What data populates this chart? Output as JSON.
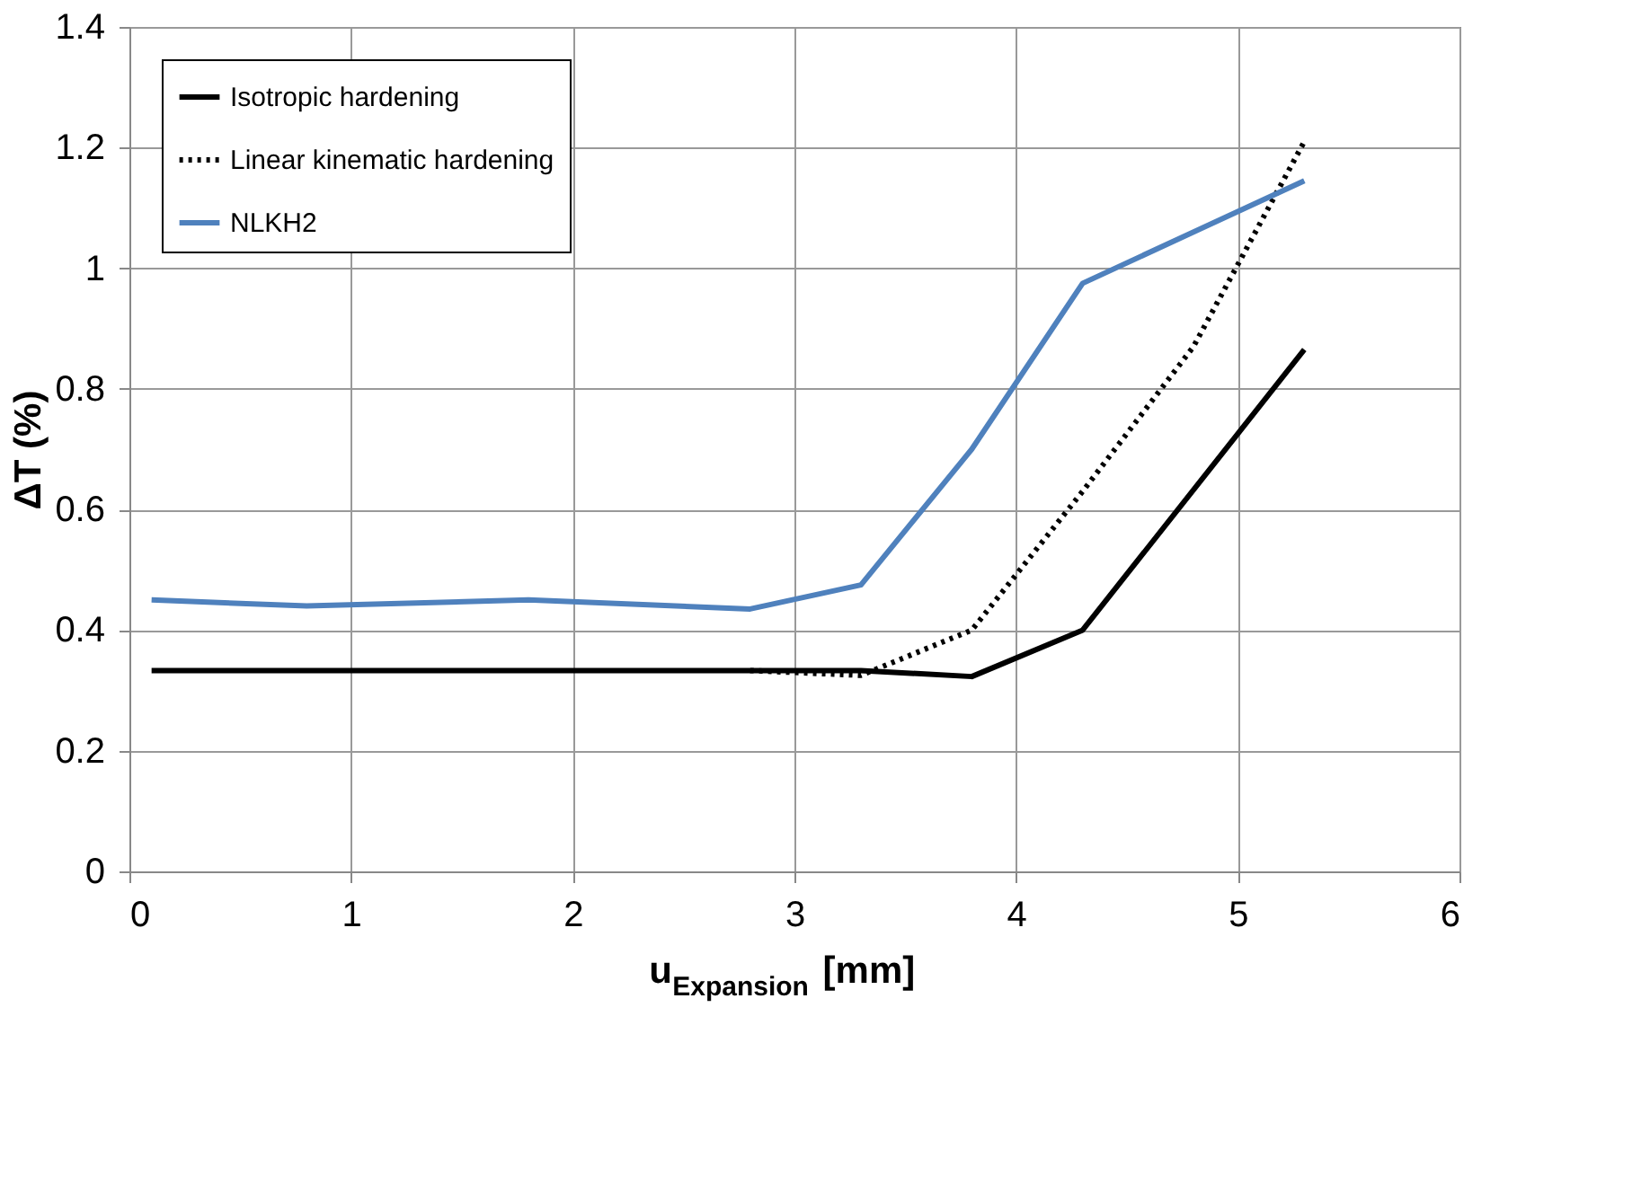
{
  "chart_data": {
    "type": "line",
    "xlabel": "u$_{Expansion}$ [mm]",
    "ylabel": "ΔT (%)",
    "xlim": [
      0,
      6
    ],
    "xticks": [
      0,
      1,
      2,
      3,
      4,
      5,
      6
    ],
    "ylim": [
      0,
      1.4
    ],
    "yticks": [
      {
        "value": 0,
        "label": "0"
      },
      0.2,
      0.4,
      0.6,
      0.8,
      {
        "value": 1,
        "label": "1"
      },
      1.2,
      1.4
    ],
    "grid": true,
    "legend": "top left",
    "marker": "none",
    "series": [
      {
        "name": "Isotropic hardening",
        "color": "#000000",
        "line_style": "solid",
        "x": [
          0.1,
          2.8,
          3.3,
          3.8,
          4.3,
          5.3
        ],
        "values": [
          0.333,
          0.333,
          0.333,
          0.323,
          0.4,
          0.865
        ]
      },
      {
        "name": "Linear kinematic hardening",
        "color": "#000000",
        "line_style": "dotted",
        "x": [
          2.8,
          3.3,
          3.8,
          4.3,
          4.8,
          5.3
        ],
        "values": [
          0.333,
          0.325,
          0.4,
          0.63,
          0.87,
          1.21
        ]
      },
      {
        "name": "NLKH2",
        "color": "#4f81bd",
        "line_style": "solid",
        "x": [
          0.1,
          0.8,
          1.8,
          2.8,
          3.3,
          3.8,
          4.3,
          5.3
        ],
        "values": [
          0.45,
          0.44,
          0.45,
          0.435,
          0.475,
          0.7,
          0.975,
          1.145
        ]
      }
    ]
  }
}
